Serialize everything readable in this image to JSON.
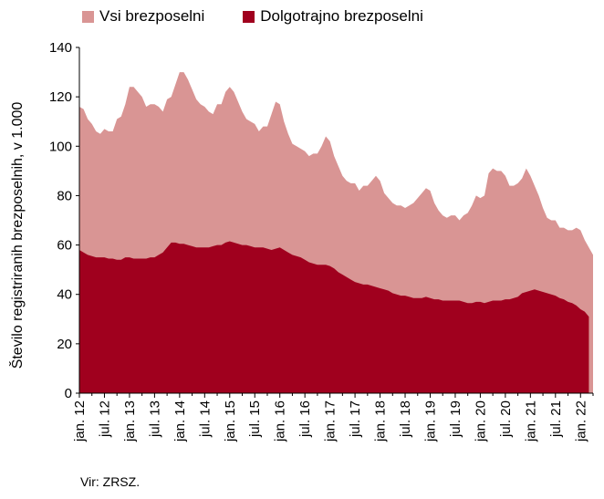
{
  "chart_data": {
    "type": "area",
    "title": "",
    "xlabel": "",
    "ylabel": "Število registriranih brezposelnih, v 1.000",
    "ylim": [
      0,
      140
    ],
    "yticks": [
      0,
      20,
      40,
      60,
      80,
      100,
      120,
      140
    ],
    "grid": false,
    "legend_position": "top",
    "x_tick_labels": [
      "jan. 12",
      "jul. 12",
      "jan. 13",
      "jul. 13",
      "jan. 14",
      "jul. 14",
      "jan. 15",
      "jul. 15",
      "jan. 16",
      "jul. 16",
      "jan. 17",
      "jul. 17",
      "jan. 18",
      "jul. 18",
      "jan. 19",
      "jul. 19",
      "jan. 20",
      "jul. 20",
      "jan. 21",
      "jul. 21",
      "jan. 22"
    ],
    "x_start": "jan. 12",
    "x_frequency": "monthly",
    "series": [
      {
        "name": "Vsi brezposelni",
        "color": "#d99594",
        "values": [
          116,
          115,
          111,
          109,
          106,
          105,
          107,
          106,
          106,
          111,
          112,
          117,
          124,
          124,
          122,
          120,
          116,
          117,
          117,
          116,
          114,
          119,
          120,
          125,
          130,
          130,
          127,
          123,
          119,
          117,
          116,
          114,
          113,
          117,
          117,
          122,
          124,
          122,
          118,
          114,
          111,
          110,
          109,
          106,
          108,
          108,
          113,
          118,
          117,
          110,
          105,
          101,
          100,
          99,
          98,
          96,
          97,
          97,
          100,
          104,
          102,
          96,
          92,
          88,
          86,
          85,
          85,
          82,
          84,
          84,
          86,
          88,
          86,
          81,
          79,
          77,
          76,
          76,
          75,
          76,
          77,
          79,
          81,
          83,
          82,
          77,
          74,
          72,
          71,
          72,
          72,
          70,
          72,
          73,
          76,
          80,
          79,
          80,
          89,
          91,
          90,
          90,
          88,
          84,
          84,
          85,
          87,
          91,
          88,
          84,
          80,
          75,
          71,
          70,
          70,
          67,
          67,
          66,
          66,
          67,
          66,
          62,
          59,
          56
        ]
      },
      {
        "name": "Dolgotrajno brezposelni",
        "color": "#a0001e",
        "values": [
          58,
          57,
          56,
          55.5,
          55,
          55,
          55,
          54.5,
          54.5,
          54,
          54,
          55,
          55,
          54.5,
          54.5,
          54.5,
          54.5,
          55,
          55,
          56,
          57,
          59,
          61,
          61,
          60.5,
          60.5,
          60,
          59.5,
          59,
          59,
          59,
          59,
          59.5,
          60,
          60,
          61,
          61.5,
          61,
          60.5,
          60,
          60,
          59.5,
          59,
          59,
          59,
          58.5,
          58,
          58.5,
          59,
          58,
          57,
          56,
          55.5,
          55,
          54,
          53,
          52.5,
          52,
          52,
          52,
          51.5,
          50.5,
          49,
          48,
          47,
          46,
          45,
          44.5,
          44,
          44,
          43.5,
          43,
          42.5,
          42,
          41.5,
          40.5,
          40,
          39.5,
          39.5,
          39,
          38.5,
          38.5,
          38.5,
          39,
          38.5,
          38,
          38,
          37.5,
          37.5,
          37.5,
          37.5,
          37.5,
          37,
          36.5,
          36.5,
          37,
          37,
          36.5,
          37,
          37.5,
          37.5,
          37.5,
          38,
          38,
          38.5,
          39,
          40.5,
          41,
          41.5,
          42,
          41.5,
          41,
          40.5,
          40,
          39.5,
          38.5,
          38,
          37,
          36.5,
          35.5,
          34,
          33,
          31
        ]
      }
    ]
  },
  "source": "Vir: ZRSZ."
}
